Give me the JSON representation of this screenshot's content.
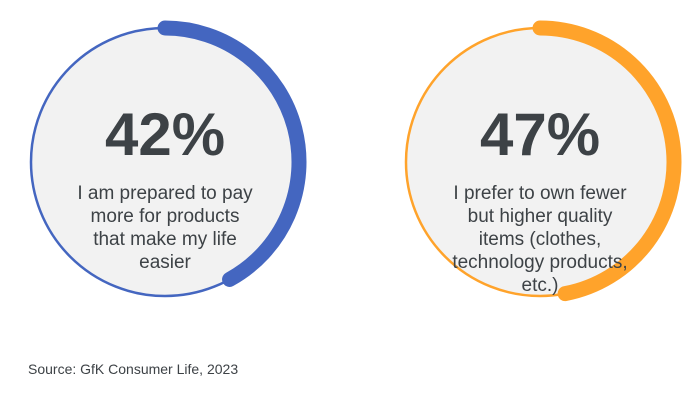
{
  "chart_data": [
    {
      "type": "radial",
      "values": [
        42
      ],
      "value_labels": [
        "42%"
      ],
      "title": "I am prepared to pay more for products that make my life easier",
      "color": "#4466c0",
      "ylim": [
        0,
        100
      ]
    },
    {
      "type": "radial",
      "values": [
        47
      ],
      "value_labels": [
        "47%"
      ],
      "title": "I prefer to own fewer but higher quality items (clothes, technology products, etc.)",
      "color": "#ffa32b",
      "ylim": [
        0,
        100
      ]
    }
  ],
  "source": "Source: GfK Consumer Life, 2023"
}
